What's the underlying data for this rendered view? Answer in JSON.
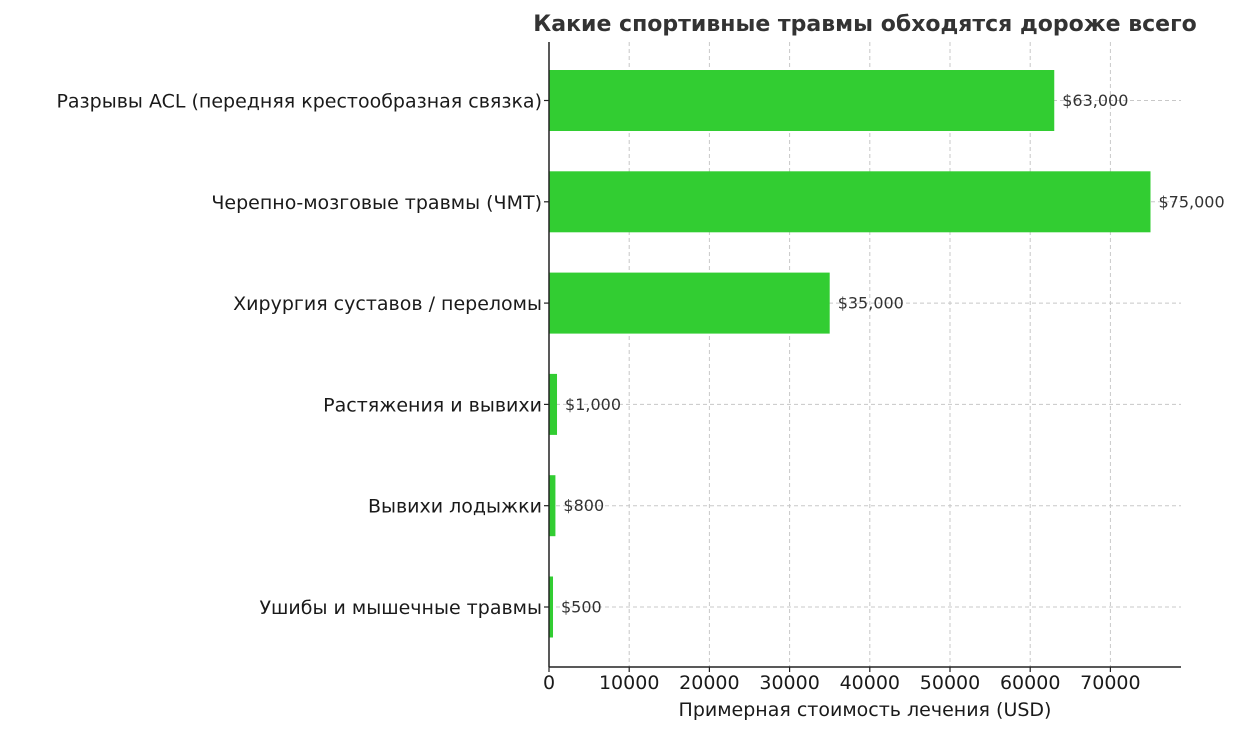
{
  "chart_data": {
    "type": "bar",
    "orientation": "horizontal",
    "title": "Какие спортивные травмы обходятся дороже всего",
    "xlabel": "Примерная стоимость лечения (USD)",
    "ylabel": "",
    "xlim": [
      0,
      78750
    ],
    "xticks": [
      0,
      10000,
      20000,
      30000,
      40000,
      50000,
      60000,
      70000
    ],
    "xtick_labels": [
      "0",
      "10000",
      "20000",
      "30000",
      "40000",
      "50000",
      "60000",
      "70000"
    ],
    "grid": true,
    "bar_color": "#32cd32",
    "categories": [
      "Разрывы ACL (передняя крестообразная связка)",
      "Черепно-мозговые травмы (ЧМТ)",
      "Хирургия суставов / переломы",
      "Растяжения и вывихи",
      "Вывихи лодыжки",
      "Ушибы и мышечные травмы"
    ],
    "values": [
      63000,
      75000,
      35000,
      1000,
      800,
      500
    ],
    "data_labels": [
      "$63,000",
      "$75,000",
      "$35,000",
      "$1,000",
      "$800",
      "$500"
    ]
  }
}
